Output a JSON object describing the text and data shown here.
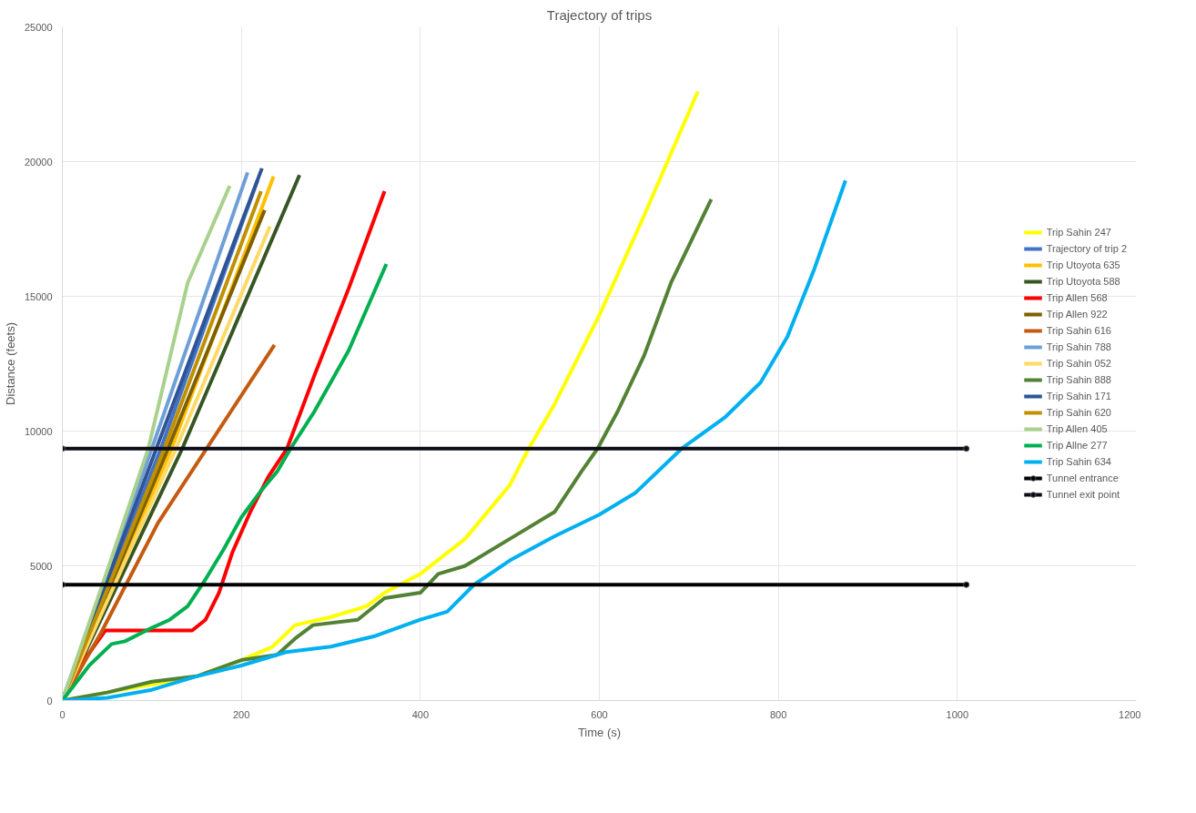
{
  "chart_data": {
    "type": "line",
    "title": "Trajectory of trips",
    "xlabel": "Time (s)",
    "ylabel": "Distance (feets)",
    "xlim": [
      0,
      1200
    ],
    "ylim": [
      0,
      25000
    ],
    "xticks": [
      0,
      200,
      400,
      600,
      800,
      1000,
      1200
    ],
    "yticks": [
      0,
      5000,
      10000,
      15000,
      20000,
      25000
    ],
    "grid": true,
    "legend": "right",
    "series": [
      {
        "name": "Trip Sahin 247",
        "color": "#ffff00",
        "x": [
          0,
          50,
          100,
          150,
          200,
          235,
          260,
          300,
          340,
          360,
          400,
          450,
          500,
          521,
          550,
          600,
          650,
          710
        ],
        "values": [
          0,
          300,
          600,
          900,
          1500,
          2000,
          2800,
          3100,
          3500,
          4000,
          4700,
          6000,
          8000,
          9350,
          11000,
          14300,
          18000,
          22600
        ]
      },
      {
        "name": "Trajectory of trip 2",
        "color": "#4472c4",
        "x": [
          0,
          110,
          218
        ],
        "values": [
          0,
          9350,
          19300
        ]
      },
      {
        "name": "Trip Utoyota 635",
        "color": "#ffc000",
        "x": [
          0,
          122,
          236
        ],
        "values": [
          0,
          9350,
          19450
        ]
      },
      {
        "name": "Trip Utoyota 588",
        "color": "#375623",
        "x": [
          0,
          134,
          265
        ],
        "values": [
          0,
          9350,
          19500
        ]
      },
      {
        "name": "Trip Allen 568",
        "color": "#ff0000",
        "x": [
          0,
          20,
          48,
          145,
          160,
          175,
          190,
          210,
          230,
          251,
          282,
          320,
          360
        ],
        "values": [
          0,
          1300,
          2600,
          2600,
          3000,
          4000,
          5500,
          7000,
          8300,
          9350,
          12100,
          15300,
          18900
        ]
      },
      {
        "name": "Trip Allen 922",
        "color": "#7f6000",
        "x": [
          0,
          118,
          226
        ],
        "values": [
          0,
          9350,
          18200
        ]
      },
      {
        "name": "Trip Sahin 616",
        "color": "#c55a11",
        "x": [
          0,
          43,
          107,
          237
        ],
        "values": [
          0,
          2500,
          6600,
          13200
        ]
      },
      {
        "name": "Trip Sahin 788",
        "color": "#6f9fd8",
        "x": [
          0,
          100,
          207
        ],
        "values": [
          0,
          9350,
          19600
        ]
      },
      {
        "name": "Trip Sahin 052",
        "color": "#ffd966",
        "x": [
          0,
          127,
          232
        ],
        "values": [
          0,
          9350,
          17600
        ]
      },
      {
        "name": "Trip Sahin 888",
        "color": "#548235",
        "x": [
          0,
          50,
          100,
          150,
          200,
          240,
          260,
          280,
          330,
          360,
          400,
          420,
          450,
          500,
          550,
          580,
          598,
          620,
          650,
          680,
          725
        ],
        "values": [
          0,
          300,
          700,
          900,
          1500,
          1700,
          2300,
          2800,
          3000,
          3800,
          4000,
          4700,
          5000,
          6000,
          7000,
          8500,
          9350,
          10700,
          12800,
          15500,
          18600
        ]
      },
      {
        "name": "Trip Sahin 171",
        "color": "#2f5597",
        "x": [
          0,
          105,
          223
        ],
        "values": [
          0,
          9350,
          19750
        ]
      },
      {
        "name": "Trip Sahin 620",
        "color": "#bf9000",
        "x": [
          0,
          114,
          222
        ],
        "values": [
          0,
          9350,
          18900
        ]
      },
      {
        "name": "Trip Allen 405",
        "color": "#a9d18e",
        "x": [
          0,
          50,
          96,
          140,
          187
        ],
        "values": [
          0,
          4800,
          9350,
          15500,
          19100
        ]
      },
      {
        "name": "Trip Allne 277",
        "color": "#00b050",
        "x": [
          0,
          30,
          55,
          70,
          100,
          120,
          140,
          160,
          180,
          200,
          220,
          240,
          255,
          282,
          320,
          362
        ],
        "values": [
          0,
          1300,
          2100,
          2200,
          2700,
          3000,
          3500,
          4500,
          5600,
          6800,
          7700,
          8500,
          9350,
          10750,
          13000,
          16200
        ]
      },
      {
        "name": "Trip Sahin 634",
        "color": "#00b0f0",
        "x": [
          0,
          50,
          100,
          150,
          200,
          250,
          300,
          350,
          400,
          430,
          460,
          500,
          550,
          600,
          640,
          692,
          740,
          780,
          810,
          840,
          875
        ],
        "values": [
          0,
          100,
          400,
          900,
          1300,
          1800,
          2000,
          2400,
          3000,
          3300,
          4300,
          5200,
          6100,
          6900,
          7700,
          9350,
          10500,
          11800,
          13500,
          16000,
          19300
        ]
      },
      {
        "name": "Tunnel entrance",
        "color": "#000000",
        "marker": "circle",
        "x": [
          0,
          1010
        ],
        "values": [
          4300,
          4300
        ]
      },
      {
        "name": "Tunnel exit point",
        "color": "#0d0d1a",
        "marker": "circle",
        "x": [
          0,
          1010
        ],
        "values": [
          9350,
          9350
        ]
      }
    ]
  }
}
